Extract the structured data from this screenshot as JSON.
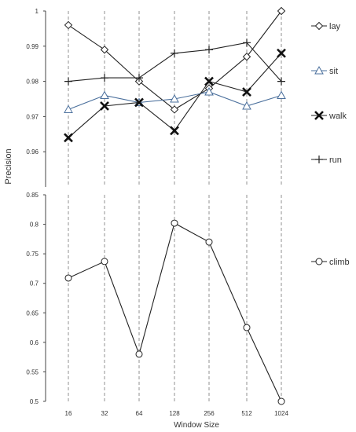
{
  "chart_data": [
    {
      "type": "line",
      "x": [
        "16",
        "32",
        "64",
        "128",
        "256",
        "512",
        "1024"
      ],
      "ylim": [
        0.95,
        1.0
      ],
      "yticks": [
        0.96,
        0.97,
        0.98,
        0.99,
        1
      ],
      "ytick_labels": [
        "0.96",
        "0.97",
        "0.98",
        "0.99",
        "1"
      ],
      "grid": "vertical dashed",
      "legend": "right",
      "series": [
        {
          "name": "lay",
          "marker": "diamond",
          "color": "#222222",
          "values": [
            0.996,
            0.989,
            0.98,
            0.972,
            0.978,
            0.987,
            1.0
          ]
        },
        {
          "name": "sit",
          "marker": "triangle",
          "color": "#4a6f9c",
          "values": [
            0.972,
            0.976,
            0.974,
            0.975,
            0.977,
            0.973,
            0.976
          ]
        },
        {
          "name": "walk",
          "marker": "x",
          "color": "#222222",
          "values": [
            0.964,
            0.973,
            0.974,
            0.966,
            0.98,
            0.977,
            0.988
          ]
        },
        {
          "name": "run",
          "marker": "plus",
          "color": "#222222",
          "values": [
            0.98,
            0.981,
            0.981,
            0.988,
            0.989,
            0.991,
            0.98
          ]
        }
      ]
    },
    {
      "type": "line",
      "x": [
        "16",
        "32",
        "64",
        "128",
        "256",
        "512",
        "1024"
      ],
      "ylim": [
        0.5,
        0.85
      ],
      "yticks": [
        0.5,
        0.55,
        0.6,
        0.65,
        0.7,
        0.75,
        0.8,
        0.85
      ],
      "ytick_labels": [
        "0.5",
        "0.55",
        "0.6",
        "0.65",
        "0.7",
        "0.75",
        "0.8",
        "0.85"
      ],
      "grid": "vertical dashed",
      "legend": "right",
      "series": [
        {
          "name": "climb",
          "marker": "circle",
          "color": "#222222",
          "values": [
            0.709,
            0.737,
            0.58,
            0.802,
            0.77,
            0.625,
            0.5
          ]
        }
      ]
    }
  ],
  "labels": {
    "ylabel": "Precision",
    "xlabel": "Window Size"
  }
}
